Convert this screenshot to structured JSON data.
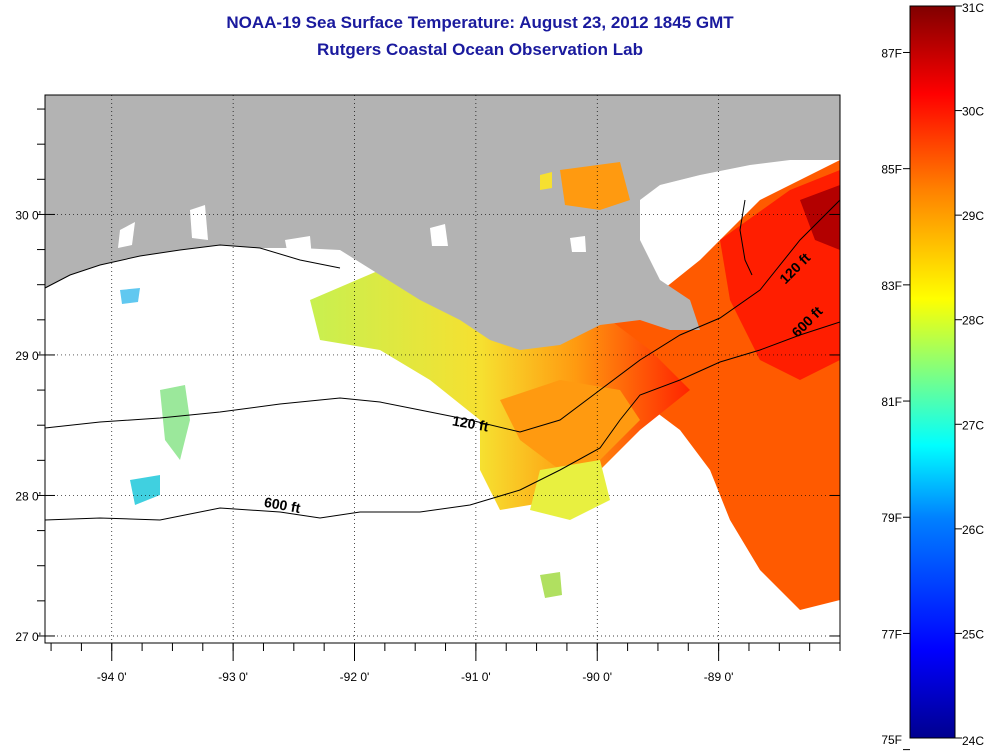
{
  "title": {
    "line1": "NOAA-19 Sea Surface Temperature:  August 23, 2012 1845 GMT",
    "line2": "Rutgers Coastal Ocean Observation Lab"
  },
  "colors": {
    "title": "#1a1a9e",
    "land": "#b3b3b3",
    "water_nodata": "#ffffff",
    "gradient": [
      "#00008f",
      "#0000ff",
      "#0080ff",
      "#00ffff",
      "#80ff80",
      "#ffff00",
      "#ff8000",
      "#ff0000",
      "#800000"
    ]
  },
  "map": {
    "lon_range": [
      -94.55,
      -88.0
    ],
    "lat_range": [
      26.95,
      30.85
    ],
    "lon_ticks": [
      {
        "value": -94,
        "label": "-94 0'"
      },
      {
        "value": -93,
        "label": "-93 0'"
      },
      {
        "value": -92,
        "label": "-92 0'"
      },
      {
        "value": -91,
        "label": "-91 0'"
      },
      {
        "value": -90,
        "label": "-90 0'"
      },
      {
        "value": -89,
        "label": "-89 0'"
      }
    ],
    "lat_ticks": [
      {
        "value": 30,
        "label": "30 0'"
      },
      {
        "value": 29,
        "label": "29 0'"
      },
      {
        "value": 28,
        "label": "28 0'"
      },
      {
        "value": 27,
        "label": "27 0'"
      }
    ],
    "contour_labels": [
      {
        "text": "120 ft",
        "lon": -91.2,
        "lat": 28.5
      },
      {
        "text": "600 ft",
        "lon": -92.75,
        "lat": 27.92
      },
      {
        "text": "120 ft",
        "lon": -88.45,
        "lat": 29.5
      },
      {
        "text": "600 ft",
        "lon": -88.35,
        "lat": 29.12
      }
    ]
  },
  "colorbar": {
    "range_c": [
      24,
      31
    ],
    "celsius_ticks": [
      "31C",
      "30C",
      "29C",
      "28C",
      "27C",
      "26C",
      "25C",
      "24C"
    ],
    "fahrenheit_ticks": [
      "87F",
      "85F",
      "83F",
      "81F",
      "79F",
      "77F",
      "75F"
    ]
  }
}
